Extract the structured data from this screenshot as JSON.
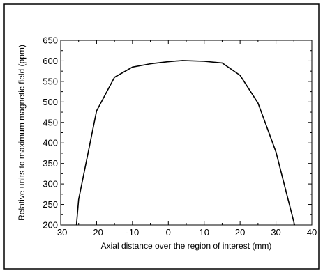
{
  "chart_data": {
    "type": "line",
    "title": "",
    "xlabel": "Axial distance over the region of interest (mm)",
    "ylabel": "Relative units to maximum magnetic field  (ppm)",
    "xlim": [
      -30,
      40
    ],
    "ylim": [
      200,
      650
    ],
    "xticks": [
      -30,
      -20,
      -10,
      0,
      10,
      20,
      30,
      40
    ],
    "yticks": [
      200,
      250,
      300,
      350,
      400,
      450,
      500,
      550,
      600,
      650
    ],
    "grid": false,
    "legend": "none",
    "line_color": "#000000",
    "series": [
      {
        "x": [
          -25.6,
          -25,
          -20,
          -15,
          -10,
          -5,
          0,
          4,
          10,
          15,
          20,
          25,
          30,
          35.2
        ],
        "y": [
          200,
          262,
          478,
          560,
          585,
          593,
          598,
          601,
          599,
          595,
          565,
          497,
          378,
          200
        ]
      }
    ]
  }
}
